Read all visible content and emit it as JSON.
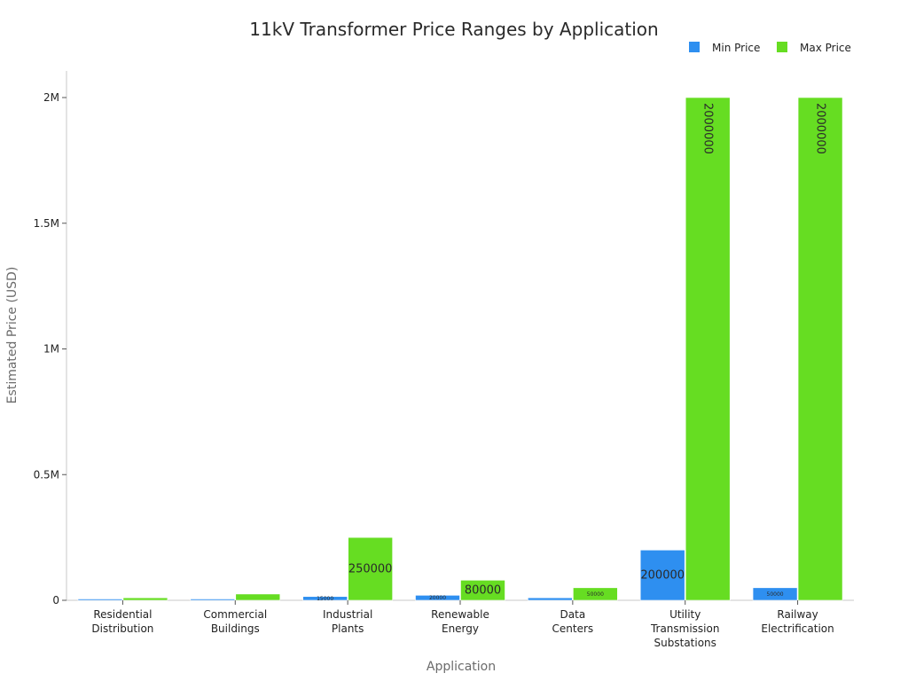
{
  "chart_data": {
    "type": "bar",
    "title": "11kV Transformer Price Ranges by Application",
    "xlabel": "Application",
    "ylabel": "Estimated Price (USD)",
    "ylim": [
      0,
      2100000
    ],
    "yticks": [
      {
        "value": 0,
        "label": "0"
      },
      {
        "value": 500000,
        "label": "0.5M"
      },
      {
        "value": 1000000,
        "label": "1M"
      },
      {
        "value": 1500000,
        "label": "1.5M"
      },
      {
        "value": 2000000,
        "label": "2M"
      }
    ],
    "legend_position": "top-right",
    "categories": [
      [
        "Residential",
        "Distribution"
      ],
      [
        "Commercial",
        "Buildings"
      ],
      [
        "Industrial",
        "Plants"
      ],
      [
        "Renewable",
        "Energy"
      ],
      [
        "Data",
        "Centers"
      ],
      [
        "Utility",
        "Transmission",
        "Substations"
      ],
      [
        "Railway",
        "Electrification"
      ]
    ],
    "series": [
      {
        "name": "Min Price",
        "color": "#2e8ff0",
        "values": [
          1000,
          5000,
          15000,
          20000,
          10000,
          200000,
          50000
        ],
        "labels": [
          "",
          "",
          "15000",
          "20000",
          "",
          "200000",
          "50000"
        ]
      },
      {
        "name": "Max Price",
        "color": "#66dd22",
        "values": [
          10000,
          25000,
          250000,
          80000,
          50000,
          2000000,
          2000000
        ],
        "labels": [
          "",
          "",
          "250000",
          "80000",
          "50000",
          "2000000",
          "2000000"
        ]
      }
    ]
  }
}
